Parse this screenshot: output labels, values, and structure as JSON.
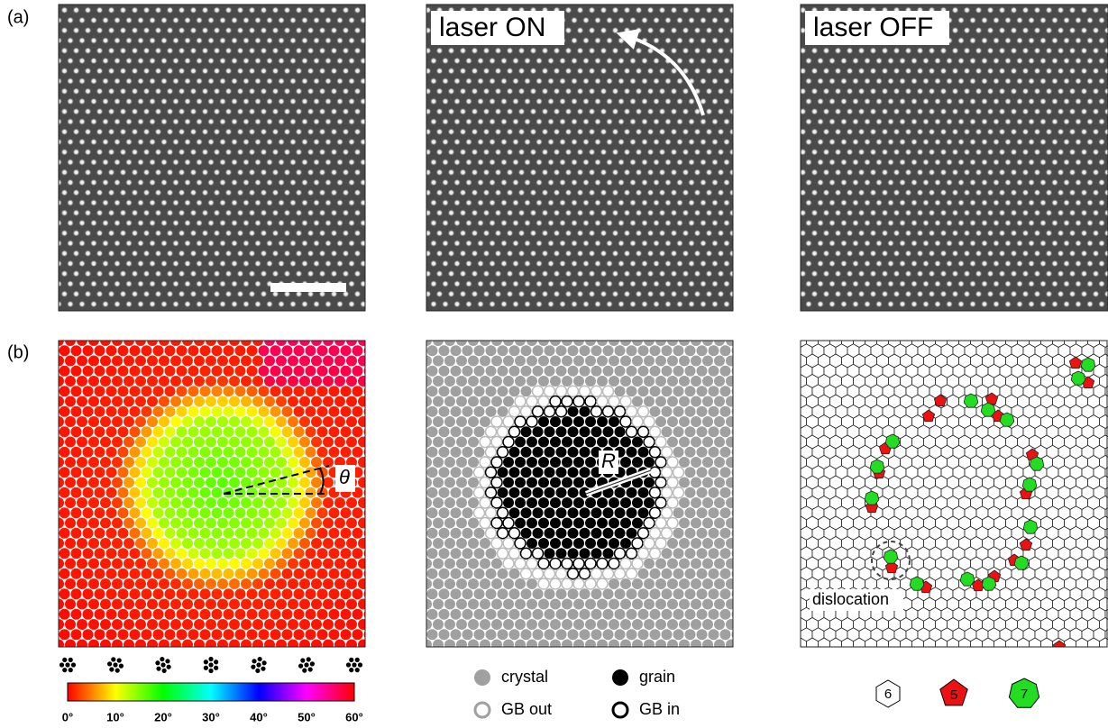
{
  "labels": {
    "a": "(a)",
    "b": "(b)",
    "laser_on": "laser ON",
    "laser_off": "laser OFF",
    "theta": "θ",
    "radius": "R",
    "dislocation": "dislocation"
  },
  "colorbar": {
    "labels": [
      "0°",
      "10°",
      "20°",
      "30°",
      "40°",
      "50°",
      "60°"
    ]
  },
  "legend": {
    "crystal": "crystal",
    "grain": "grain",
    "gb_out": "GB out",
    "gb_in": "GB in"
  },
  "defects": {
    "six": "6",
    "five": "5",
    "seven": "7"
  }
}
